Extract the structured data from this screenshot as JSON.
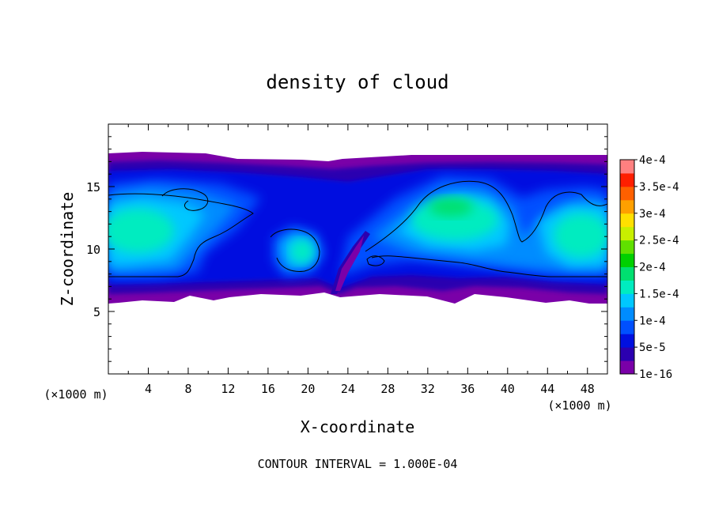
{
  "chart_data": {
    "type": "heatmap",
    "title": "density of cloud",
    "xlabel": "X-coordinate",
    "ylabel": "Z-coordinate",
    "x_unit_label": "(×1000 m)",
    "y_unit_label": "(×1000 m)",
    "xlim": [
      0,
      50
    ],
    "ylim": [
      0,
      20
    ],
    "x_ticks": [
      4,
      8,
      12,
      16,
      20,
      24,
      28,
      32,
      36,
      40,
      44,
      48
    ],
    "y_ticks": [
      5,
      10,
      15
    ],
    "footer": "CONTOUR INTERVAL = 1.000E-04",
    "colorbar": {
      "levels": [
        1e-16,
        2.5e-05,
        5e-05,
        7.5e-05,
        0.0001,
        0.000125,
        0.00015,
        0.000175,
        0.0002,
        0.000225,
        0.00025,
        0.000275,
        0.0003,
        0.000325,
        0.00035,
        0.000375,
        0.0004
      ],
      "colors": [
        "#7a00a8",
        "#2b00b0",
        "#0010e0",
        "#0050ff",
        "#008cff",
        "#00c8ff",
        "#00ecc0",
        "#00e070",
        "#00d000",
        "#60e000",
        "#c8f000",
        "#ffe000",
        "#ffa000",
        "#ff6000",
        "#ff1e00",
        "#ff8080"
      ],
      "tick_labels": [
        "1e-16",
        "5e-5",
        "1e-4",
        "1.5e-4",
        "2e-4",
        "2.5e-4",
        "3e-4",
        "3.5e-4",
        "4e-4"
      ],
      "tick_values": [
        1e-16,
        5e-05,
        0.0001,
        0.00015,
        0.0002,
        0.00025,
        0.0003,
        0.00035,
        0.0004
      ]
    },
    "cloud_layer": {
      "base_z": 6,
      "top_z": 17.5,
      "contour_level": 0.0001,
      "max_value_approx": 0.00019
    },
    "cloud_cores": [
      {
        "x": 2,
        "z": 11.5,
        "value": 0.00017
      },
      {
        "x": 6,
        "z": 13.5,
        "value": 0.00015
      },
      {
        "x": 19,
        "z": 10,
        "value": 0.00016
      },
      {
        "x": 31,
        "z": 12.5,
        "value": 0.00018
      },
      {
        "x": 35,
        "z": 13.5,
        "value": 0.000175
      },
      {
        "x": 46,
        "z": 11.5,
        "value": 0.00017
      }
    ]
  }
}
